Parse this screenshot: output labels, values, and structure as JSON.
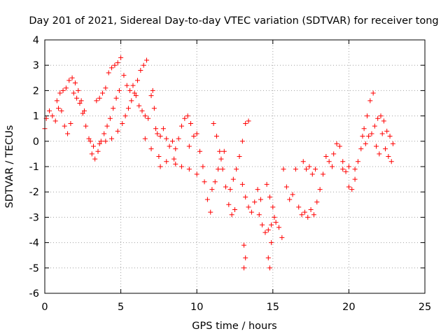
{
  "chart_data": {
    "type": "scatter",
    "title": "Day 201 of 2021, Sidereal Day-to-day VTEC variation (SDTVAR) for receiver tong",
    "xlabel": "GPS time / hours",
    "ylabel": "SDTVAR / TECUs",
    "xlim": [
      0,
      25
    ],
    "ylim": [
      -6,
      4
    ],
    "x_ticks": [
      "0",
      "5",
      "10",
      "15",
      "20",
      "25"
    ],
    "y_ticks": [
      "4",
      "3",
      "2",
      "1",
      "0",
      "-1",
      "-2",
      "-3",
      "-4",
      "-5",
      "-6"
    ],
    "grid": true,
    "legend": "none",
    "marker": "+",
    "color": "#ff0000",
    "series": [
      {
        "name": "SDTVAR",
        "points": [
          [
            0.0,
            0.5
          ],
          [
            0.1,
            0.9
          ],
          [
            0.3,
            1.2
          ],
          [
            0.5,
            1.0
          ],
          [
            0.7,
            0.8
          ],
          [
            0.9,
            1.3
          ],
          [
            1.1,
            1.2
          ],
          [
            1.3,
            0.6
          ],
          [
            1.5,
            0.3
          ],
          [
            1.7,
            0.7
          ],
          [
            0.8,
            1.6
          ],
          [
            1.0,
            1.9
          ],
          [
            1.2,
            2.0
          ],
          [
            1.4,
            2.1
          ],
          [
            1.6,
            2.4
          ],
          [
            1.8,
            2.5
          ],
          [
            2.0,
            2.3
          ],
          [
            2.2,
            2.0
          ],
          [
            2.4,
            1.6
          ],
          [
            2.6,
            1.2
          ],
          [
            1.9,
            1.9
          ],
          [
            2.1,
            1.7
          ],
          [
            2.3,
            1.5
          ],
          [
            2.5,
            1.1
          ],
          [
            2.7,
            0.6
          ],
          [
            2.9,
            0.1
          ],
          [
            3.1,
            -0.5
          ],
          [
            3.3,
            -0.7
          ],
          [
            3.5,
            -0.4
          ],
          [
            3.7,
            0.0
          ],
          [
            3.9,
            0.3
          ],
          [
            4.1,
            0.6
          ],
          [
            4.3,
            0.9
          ],
          [
            4.5,
            1.3
          ],
          [
            4.7,
            1.7
          ],
          [
            4.9,
            2.0
          ],
          [
            3.4,
            1.6
          ],
          [
            3.6,
            1.7
          ],
          [
            3.8,
            1.9
          ],
          [
            4.0,
            2.1
          ],
          [
            4.2,
            2.7
          ],
          [
            4.4,
            2.9
          ],
          [
            4.6,
            3.0
          ],
          [
            4.8,
            3.1
          ],
          [
            5.0,
            3.3
          ],
          [
            5.2,
            2.6
          ],
          [
            5.4,
            2.2
          ],
          [
            5.6,
            2.0
          ],
          [
            3.0,
            0.0
          ],
          [
            3.2,
            -0.2
          ],
          [
            3.6,
            -0.1
          ],
          [
            4.0,
            0.0
          ],
          [
            4.4,
            0.1
          ],
          [
            4.8,
            0.4
          ],
          [
            5.1,
            0.7
          ],
          [
            5.3,
            1.0
          ],
          [
            5.5,
            1.3
          ],
          [
            5.7,
            1.6
          ],
          [
            5.9,
            1.9
          ],
          [
            6.1,
            2.4
          ],
          [
            6.3,
            2.8
          ],
          [
            6.5,
            3.0
          ],
          [
            6.7,
            3.2
          ],
          [
            5.8,
            2.2
          ],
          [
            6.0,
            1.8
          ],
          [
            6.2,
            1.4
          ],
          [
            6.4,
            1.2
          ],
          [
            6.6,
            1.0
          ],
          [
            6.8,
            0.9
          ],
          [
            7.0,
            1.8
          ],
          [
            7.1,
            2.0
          ],
          [
            7.2,
            1.3
          ],
          [
            7.3,
            0.5
          ],
          [
            7.4,
            0.3
          ],
          [
            7.6,
            0.2
          ],
          [
            7.8,
            0.5
          ],
          [
            8.0,
            0.1
          ],
          [
            8.2,
            -0.2
          ],
          [
            8.4,
            0.0
          ],
          [
            8.6,
            -0.3
          ],
          [
            8.8,
            0.1
          ],
          [
            9.0,
            0.6
          ],
          [
            9.2,
            0.9
          ],
          [
            9.4,
            1.0
          ],
          [
            9.6,
            0.7
          ],
          [
            9.8,
            0.2
          ],
          [
            10.0,
            0.3
          ],
          [
            9.5,
            -0.2
          ],
          [
            8.6,
            -0.9
          ],
          [
            7.6,
            -1.0
          ],
          [
            6.6,
            0.1
          ],
          [
            7.0,
            -0.3
          ],
          [
            7.5,
            -0.6
          ],
          [
            8.0,
            -0.8
          ],
          [
            8.5,
            -0.7
          ],
          [
            9.0,
            -1.0
          ],
          [
            9.5,
            -1.1
          ],
          [
            10.0,
            -1.3
          ],
          [
            10.2,
            -0.4
          ],
          [
            10.4,
            -1.0
          ],
          [
            10.5,
            -1.6
          ],
          [
            10.7,
            -2.3
          ],
          [
            10.9,
            -2.8
          ],
          [
            11.0,
            -1.9
          ],
          [
            11.2,
            -1.6
          ],
          [
            11.4,
            -1.1
          ],
          [
            11.6,
            -0.7
          ],
          [
            11.8,
            -0.4
          ],
          [
            11.1,
            0.7
          ],
          [
            11.3,
            0.2
          ],
          [
            11.5,
            -0.4
          ],
          [
            11.7,
            -1.1
          ],
          [
            11.9,
            -1.8
          ],
          [
            12.1,
            -2.5
          ],
          [
            12.3,
            -2.9
          ],
          [
            12.5,
            -2.7
          ],
          [
            12.2,
            -1.9
          ],
          [
            12.4,
            -1.5
          ],
          [
            12.6,
            -1.1
          ],
          [
            12.8,
            -0.6
          ],
          [
            13.0,
            0.0
          ],
          [
            13.2,
            0.7
          ],
          [
            13.4,
            0.8
          ],
          [
            13.0,
            -1.7
          ],
          [
            13.2,
            -2.2
          ],
          [
            13.4,
            -2.6
          ],
          [
            13.6,
            -2.8
          ],
          [
            13.8,
            -2.4
          ],
          [
            14.0,
            -1.9
          ],
          [
            14.2,
            -2.3
          ],
          [
            13.1,
            -4.1
          ],
          [
            13.2,
            -4.6
          ],
          [
            13.1,
            -5.0
          ],
          [
            14.1,
            -2.9
          ],
          [
            14.3,
            -3.3
          ],
          [
            14.5,
            -3.6
          ],
          [
            14.7,
            -3.5
          ],
          [
            14.9,
            -3.3
          ],
          [
            15.1,
            -3.0
          ],
          [
            14.6,
            -1.7
          ],
          [
            14.8,
            -2.2
          ],
          [
            15.0,
            -2.6
          ],
          [
            15.2,
            -3.2
          ],
          [
            15.4,
            -3.4
          ],
          [
            14.7,
            -4.6
          ],
          [
            14.8,
            -5.0
          ],
          [
            14.9,
            -4.0
          ],
          [
            15.6,
            -3.8
          ],
          [
            15.7,
            -1.1
          ],
          [
            15.9,
            -1.8
          ],
          [
            16.1,
            -2.3
          ],
          [
            16.3,
            -2.1
          ],
          [
            16.5,
            -1.1
          ],
          [
            16.7,
            -2.6
          ],
          [
            16.9,
            -2.9
          ],
          [
            17.1,
            -2.8
          ],
          [
            17.3,
            -3.0
          ],
          [
            17.5,
            -2.7
          ],
          [
            17.7,
            -2.9
          ],
          [
            17.9,
            -2.4
          ],
          [
            18.1,
            -1.9
          ],
          [
            18.3,
            -1.3
          ],
          [
            18.5,
            -0.6
          ],
          [
            18.7,
            -0.8
          ],
          [
            18.9,
            -1.0
          ],
          [
            17.0,
            -0.8
          ],
          [
            17.2,
            -1.1
          ],
          [
            17.4,
            -1.0
          ],
          [
            17.6,
            -1.3
          ],
          [
            17.8,
            -1.1
          ],
          [
            19.0,
            -0.5
          ],
          [
            19.2,
            -0.1
          ],
          [
            19.4,
            -0.2
          ],
          [
            19.6,
            -0.8
          ],
          [
            19.8,
            -1.2
          ],
          [
            20.0,
            -1.8
          ],
          [
            20.2,
            -1.9
          ],
          [
            20.4,
            -1.5
          ],
          [
            20.6,
            -0.8
          ],
          [
            20.8,
            -0.3
          ],
          [
            21.0,
            0.5
          ],
          [
            21.2,
            1.0
          ],
          [
            21.4,
            1.6
          ],
          [
            21.6,
            1.9
          ],
          [
            20.9,
            0.2
          ],
          [
            21.1,
            -0.1
          ],
          [
            21.3,
            0.2
          ],
          [
            21.5,
            0.3
          ],
          [
            21.7,
            0.6
          ],
          [
            21.9,
            0.9
          ],
          [
            22.1,
            1.0
          ],
          [
            22.3,
            0.8
          ],
          [
            22.5,
            0.4
          ],
          [
            22.7,
            0.2
          ],
          [
            22.9,
            -0.1
          ],
          [
            22.2,
            0.3
          ],
          [
            22.4,
            -0.3
          ],
          [
            22.6,
            -0.6
          ],
          [
            22.8,
            -0.8
          ],
          [
            22.0,
            -0.5
          ],
          [
            21.8,
            -0.2
          ],
          [
            20.4,
            -1.1
          ],
          [
            20.0,
            -1.0
          ],
          [
            19.6,
            -1.1
          ]
        ]
      }
    ]
  }
}
